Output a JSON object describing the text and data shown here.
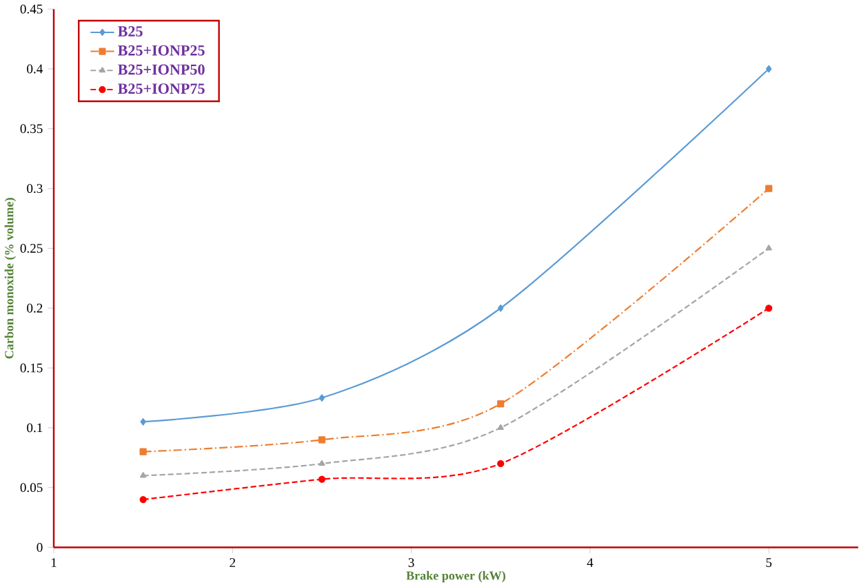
{
  "chart_data": {
    "type": "line",
    "xlabel": "Brake power (kW)",
    "ylabel": "Carbon monoxide (% volume)",
    "x": [
      1.5,
      2.5,
      3.5,
      5
    ],
    "series": [
      {
        "name": "B25",
        "color": "#5b9bd5",
        "values": [
          0.105,
          0.125,
          0.2,
          0.4
        ],
        "marker": "diamond",
        "line_style": "solid"
      },
      {
        "name": "B25+IONP25",
        "color": "#ed7d31",
        "values": [
          0.08,
          0.09,
          0.12,
          0.3
        ],
        "marker": "square",
        "line_style": "dashdot"
      },
      {
        "name": "B25+IONP50",
        "color": "#a5a5a5",
        "values": [
          0.06,
          0.07,
          0.1,
          0.25
        ],
        "marker": "triangle",
        "line_style": "dashed"
      },
      {
        "name": "B25+IONP75",
        "color": "#ff0000",
        "values": [
          0.04,
          0.057,
          0.07,
          0.2
        ],
        "marker": "circle",
        "line_style": "dashed"
      }
    ],
    "xlim": [
      1,
      5.5
    ],
    "xticks": [
      1,
      2,
      3,
      4,
      5
    ],
    "ylim": [
      0,
      0.45
    ],
    "yticks": [
      0,
      0.05,
      0.1,
      0.15,
      0.2,
      0.25,
      0.3,
      0.35,
      0.4,
      0.45
    ],
    "grid": false,
    "legend": "top left"
  }
}
